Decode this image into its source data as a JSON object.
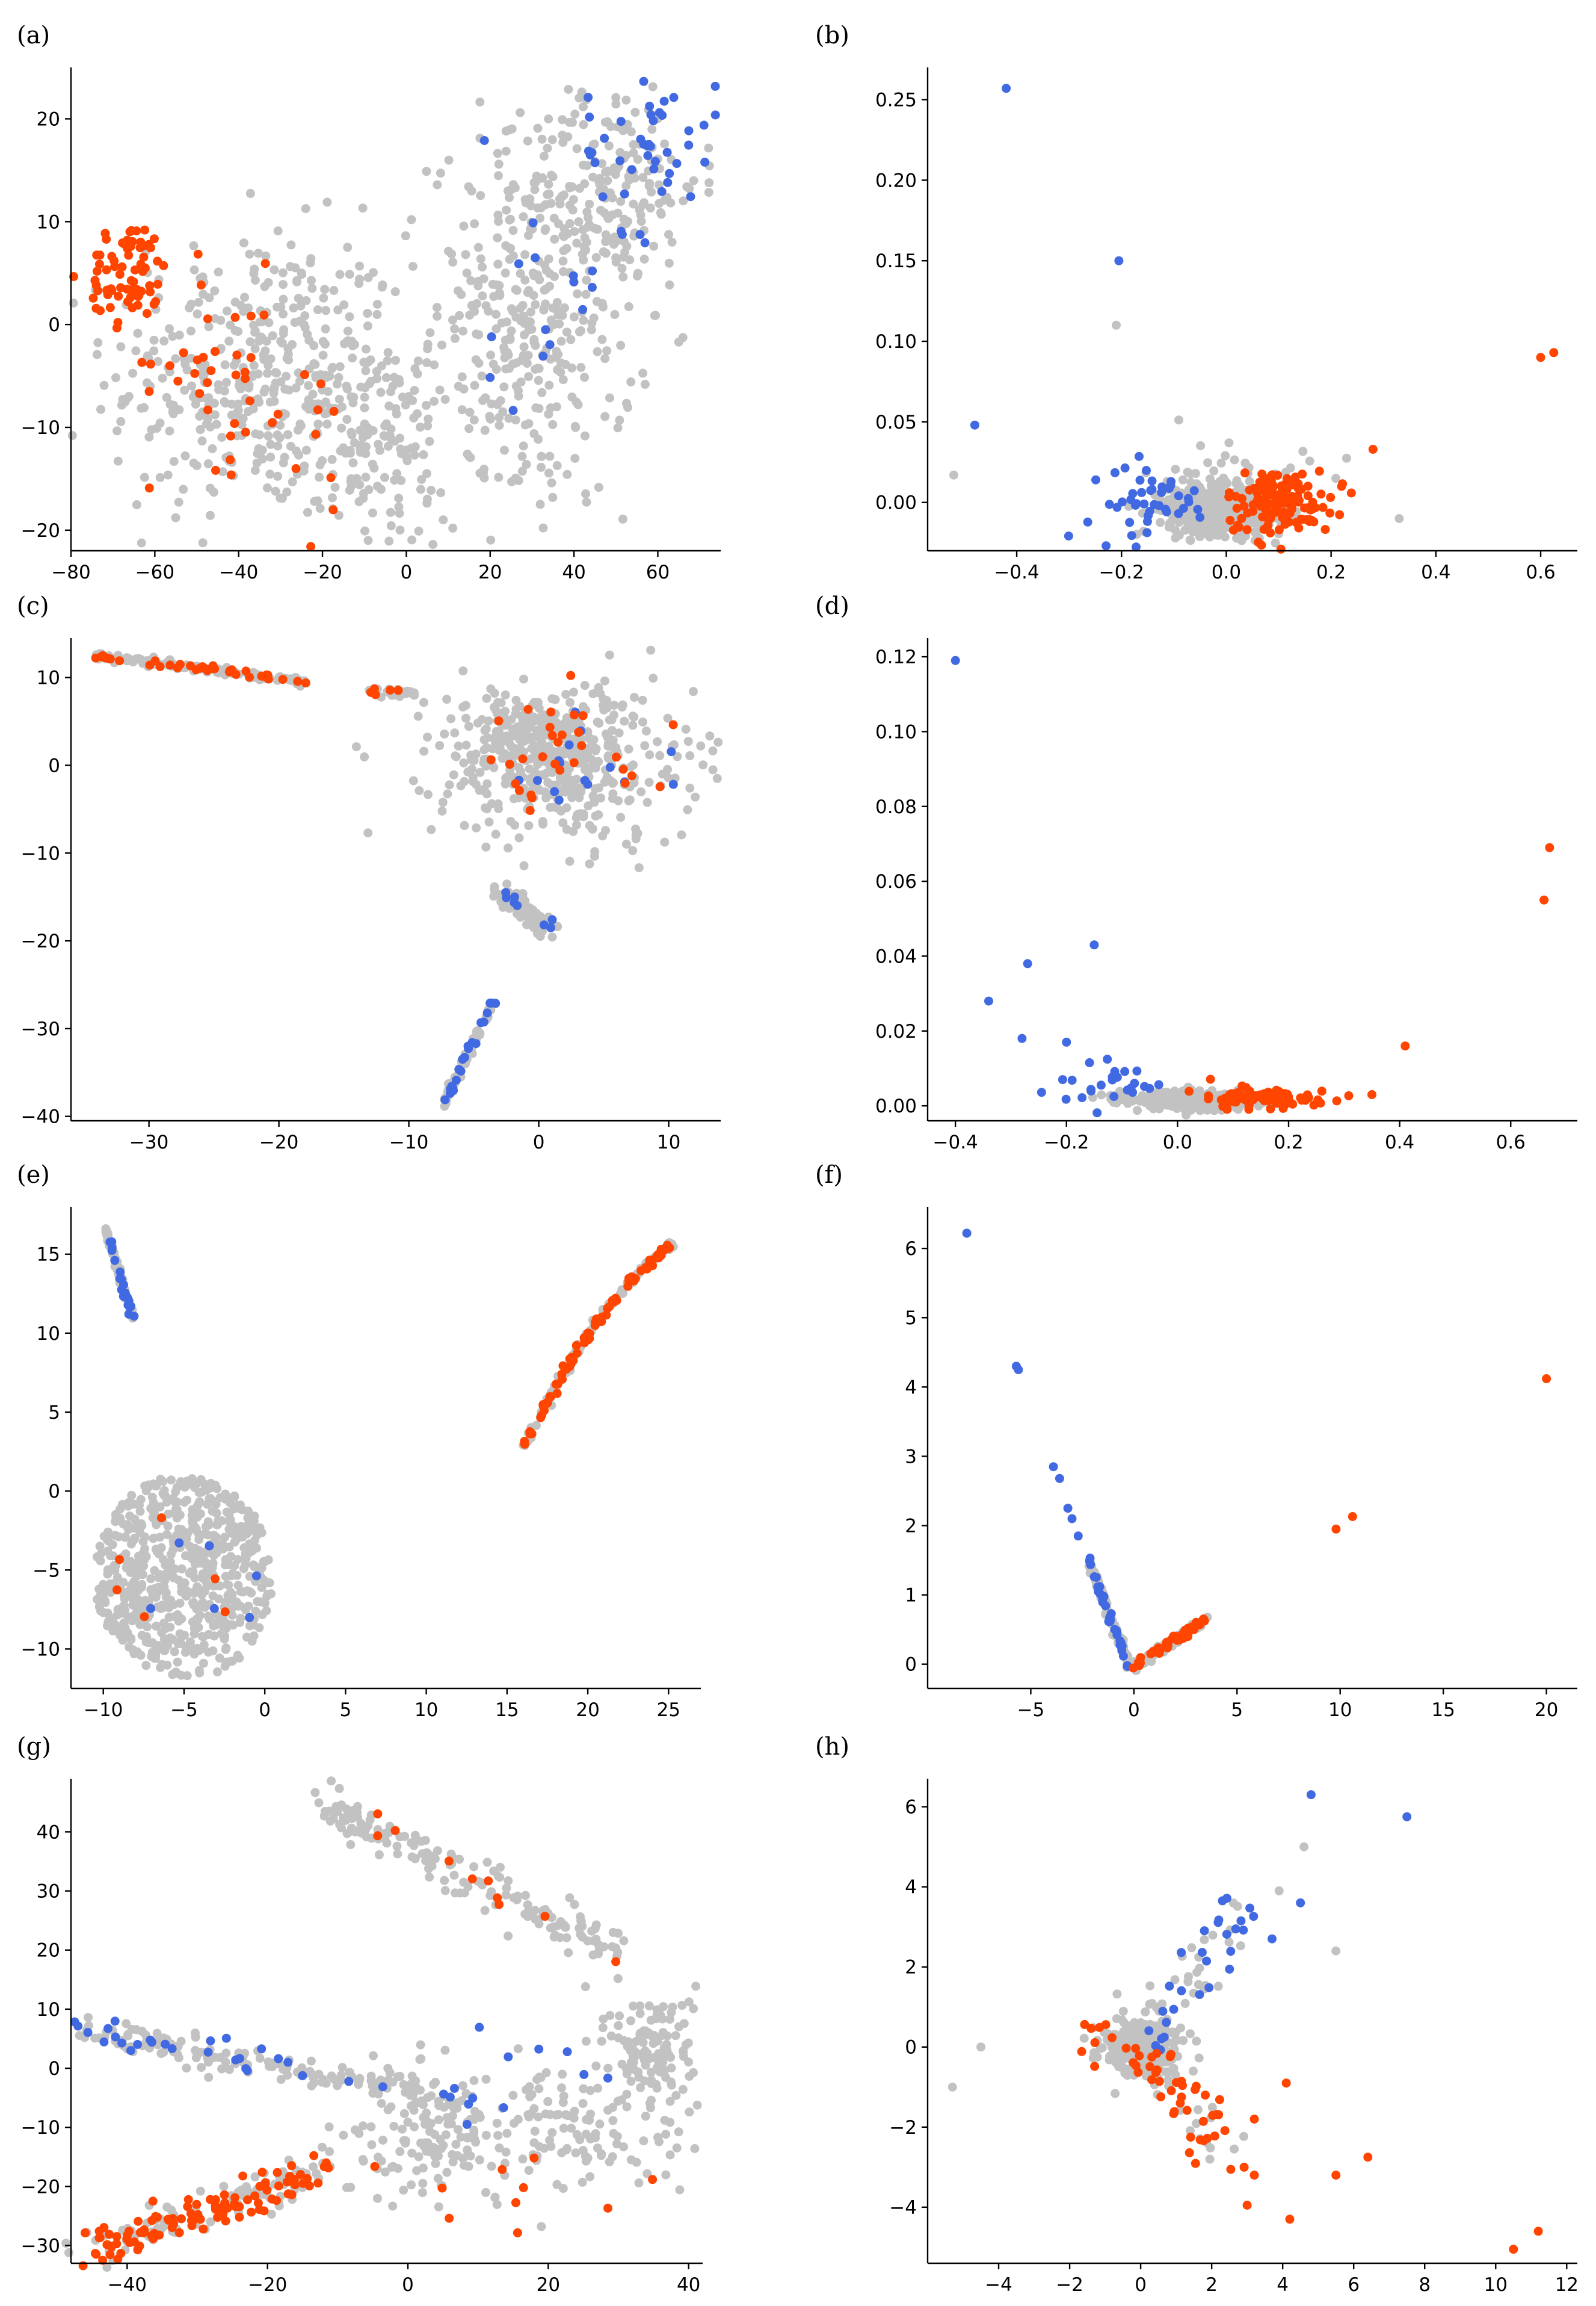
{
  "figure": {
    "colors": {
      "gray": "#c2c2c2",
      "blue": "#4169e1",
      "orange": "#ff4500"
    }
  },
  "chart_data": [
    {
      "label": "(a)",
      "type": "scatter",
      "xlim": [
        -80,
        75
      ],
      "ylim": [
        -22,
        25
      ],
      "xticks": [
        -80,
        -60,
        -40,
        -20,
        0,
        20,
        40,
        60
      ],
      "yticks": [
        -20,
        -10,
        0,
        10,
        20
      ],
      "clusters": [
        {
          "color": "gray",
          "n": 420,
          "cx": -35,
          "cy": -5,
          "sx": 18,
          "sy": 7,
          "shape": "gauss"
        },
        {
          "color": "gray",
          "n": 380,
          "cx": 30,
          "cy": 0,
          "sx": 12,
          "sy": 9,
          "shape": "gauss"
        },
        {
          "color": "gray",
          "n": 160,
          "cx": 50,
          "cy": 14,
          "sx": 10,
          "sy": 5,
          "shape": "gauss"
        },
        {
          "color": "gray",
          "n": 120,
          "cx": -8,
          "cy": -12,
          "sx": 10,
          "sy": 5,
          "shape": "gauss"
        },
        {
          "color": "orange",
          "n": 75,
          "cx": -66,
          "cy": 5,
          "sx": 5,
          "sy": 2.5,
          "shape": "gauss"
        },
        {
          "color": "orange",
          "n": 35,
          "cx": -45,
          "cy": -4,
          "sx": 8,
          "sy": 5,
          "shape": "gauss"
        },
        {
          "color": "orange",
          "n": 10,
          "cx": -25,
          "cy": -10,
          "sx": 8,
          "sy": 5,
          "shape": "gauss"
        },
        {
          "color": "blue",
          "n": 45,
          "cx": 58,
          "cy": 17,
          "sx": 8,
          "sy": 4,
          "shape": "gauss"
        },
        {
          "color": "blue",
          "n": 15,
          "cx": 35,
          "cy": 5,
          "sx": 8,
          "sy": 8,
          "shape": "gauss"
        }
      ]
    },
    {
      "label": "(b)",
      "type": "scatter",
      "xlim": [
        -0.57,
        0.67
      ],
      "ylim": [
        -0.03,
        0.27
      ],
      "xticks": [
        -0.4,
        -0.2,
        0.0,
        0.2,
        0.4,
        0.6
      ],
      "yticks": [
        0.0,
        0.05,
        0.1,
        0.15,
        0.2,
        0.25
      ],
      "clusters": [
        {
          "color": "gray",
          "n": 650,
          "cx": -0.01,
          "cy": -0.005,
          "sx": 0.05,
          "sy": 0.007,
          "shape": "gauss"
        },
        {
          "color": "gray",
          "n": 60,
          "cx": 0.0,
          "cy": 0.01,
          "sx": 0.08,
          "sy": 0.015,
          "shape": "gauss"
        },
        {
          "color": "orange",
          "n": 130,
          "cx": 0.1,
          "cy": 0.0,
          "sx": 0.05,
          "sy": 0.01,
          "shape": "gauss"
        },
        {
          "color": "blue",
          "n": 45,
          "cx": -0.14,
          "cy": 0.0,
          "sx": 0.06,
          "sy": 0.012,
          "shape": "gauss"
        }
      ],
      "points": [
        {
          "x": -0.42,
          "y": 0.257,
          "color": "blue"
        },
        {
          "x": -0.205,
          "y": 0.15,
          "color": "blue"
        },
        {
          "x": -0.48,
          "y": 0.048,
          "color": "blue"
        },
        {
          "x": -0.21,
          "y": 0.11,
          "color": "gray"
        },
        {
          "x": -0.52,
          "y": 0.017,
          "color": "gray"
        },
        {
          "x": 0.33,
          "y": -0.01,
          "color": "gray"
        },
        {
          "x": 0.6,
          "y": 0.09,
          "color": "orange"
        },
        {
          "x": 0.625,
          "y": 0.093,
          "color": "orange"
        },
        {
          "x": 0.28,
          "y": 0.033,
          "color": "orange"
        },
        {
          "x": 0.22,
          "y": 0.01,
          "color": "orange"
        }
      ]
    },
    {
      "label": "(c)",
      "type": "scatter",
      "xlim": [
        -36,
        14
      ],
      "ylim": [
        -40.5,
        14.5
      ],
      "xticks": [
        -30,
        -20,
        -10,
        0,
        10
      ],
      "yticks": [
        -40,
        -30,
        -20,
        -10,
        0,
        10
      ],
      "clusters": [
        {
          "color": "gray",
          "n": 400,
          "cx": 2,
          "cy": 0,
          "sx": 5,
          "sy": 4.5,
          "shape": "gauss"
        },
        {
          "color": "gray",
          "n": 120,
          "cx": -1,
          "cy": 4,
          "sx": 3,
          "sy": 2,
          "shape": "gauss"
        },
        {
          "color": "orange",
          "n": 30,
          "cx": 1,
          "cy": 0,
          "sx": 5,
          "sy": 4,
          "shape": "gauss"
        },
        {
          "color": "blue",
          "n": 15,
          "cx": 3,
          "cy": 0,
          "sx": 3,
          "sy": 3,
          "shape": "gauss"
        }
      ],
      "lines": [
        {
          "color": "gray",
          "n": 180,
          "x0": -34,
          "y0": 12.5,
          "x1": -18,
          "y1": 9.5,
          "j": 0.2,
          "mix": "orange",
          "mixn": 40
        },
        {
          "color": "gray",
          "n": 40,
          "x0": -13,
          "y0": 8.5,
          "x1": -9.5,
          "y1": 8.2,
          "j": 0.2,
          "mix": "orange",
          "mixn": 6
        },
        {
          "color": "gray",
          "n": 80,
          "x0": -7.5,
          "y0": -39,
          "x1": -3.5,
          "y1": -27,
          "j": 0.15,
          "mix": "blue",
          "mixn": 25
        },
        {
          "color": "gray",
          "n": 70,
          "x0": -3,
          "y0": -14,
          "x1": 1,
          "y1": -19,
          "j": 0.5,
          "mix": "blue",
          "mixn": 8
        }
      ]
    },
    {
      "label": "(d)",
      "type": "scatter",
      "xlim": [
        -0.45,
        0.72
      ],
      "ylim": [
        -0.004,
        0.125
      ],
      "xticks": [
        -0.4,
        -0.2,
        0.0,
        0.2,
        0.4,
        0.6
      ],
      "yticks": [
        0.0,
        0.02,
        0.04,
        0.06,
        0.08,
        0.1,
        0.12
      ],
      "clusters": [
        {
          "color": "gray",
          "n": 320,
          "cx": 0.03,
          "cy": 0.0015,
          "sx": 0.06,
          "sy": 0.0012,
          "shape": "gauss"
        },
        {
          "color": "orange",
          "n": 80,
          "cx": 0.15,
          "cy": 0.002,
          "sx": 0.06,
          "sy": 0.0015,
          "shape": "gauss"
        },
        {
          "color": "blue",
          "n": 25,
          "cx": -0.13,
          "cy": 0.005,
          "sx": 0.06,
          "sy": 0.003,
          "shape": "gauss"
        }
      ],
      "points": [
        {
          "x": -0.4,
          "y": 0.119,
          "color": "blue"
        },
        {
          "x": -0.15,
          "y": 0.043,
          "color": "blue"
        },
        {
          "x": -0.27,
          "y": 0.038,
          "color": "blue"
        },
        {
          "x": -0.34,
          "y": 0.028,
          "color": "blue"
        },
        {
          "x": -0.28,
          "y": 0.018,
          "color": "blue"
        },
        {
          "x": -0.2,
          "y": 0.017,
          "color": "blue"
        },
        {
          "x": 0.67,
          "y": 0.069,
          "color": "orange"
        },
        {
          "x": 0.66,
          "y": 0.055,
          "color": "orange"
        },
        {
          "x": 0.41,
          "y": 0.016,
          "color": "orange"
        },
        {
          "x": 0.35,
          "y": 0.003,
          "color": "orange"
        }
      ]
    },
    {
      "label": "(e)",
      "type": "scatter",
      "xlim": [
        -12,
        27
      ],
      "ylim": [
        -12.5,
        18
      ],
      "xticks": [
        -10,
        -5,
        0,
        5,
        10,
        15,
        20,
        25
      ],
      "yticks": [
        -10,
        -5,
        0,
        5,
        10,
        15
      ],
      "clusters": [
        {
          "color": "gray",
          "n": 650,
          "cx": -5,
          "cy": -5.5,
          "sx": 5.5,
          "sy": 6.5,
          "shape": "disk"
        },
        {
          "color": "orange",
          "n": 6,
          "cx": -5,
          "cy": -5.5,
          "sx": 5,
          "sy": 5,
          "shape": "disk"
        },
        {
          "color": "blue",
          "n": 6,
          "cx": -5,
          "cy": -5.5,
          "sx": 5,
          "sy": 5,
          "shape": "disk"
        }
      ],
      "lines": [
        {
          "color": "gray",
          "n": 80,
          "x0": -9.8,
          "y0": 16.5,
          "x1": -8.2,
          "y1": 11,
          "j": 0.08,
          "mix": "blue",
          "mixn": 25
        },
        {
          "color": "gray",
          "n": 200,
          "x0": 16,
          "y0": 2.8,
          "x1": 25.3,
          "y1": 15.8,
          "j": 0.1,
          "mix": "orange",
          "mixn": 90,
          "curve": 1.5
        }
      ]
    },
    {
      "label": "(f)",
      "type": "scatter",
      "xlim": [
        -10,
        21.5
      ],
      "ylim": [
        -0.35,
        6.6
      ],
      "xticks": [
        -5,
        0,
        5,
        10,
        15,
        20
      ],
      "yticks": [
        0,
        1,
        2,
        3,
        4,
        5,
        6
      ],
      "lines": [
        {
          "color": "gray",
          "n": 150,
          "x0": -2.2,
          "y0": 1.5,
          "x1": -0.2,
          "y1": -0.05,
          "j": 0.04,
          "mix": "blue",
          "mixn": 40
        },
        {
          "color": "gray",
          "n": 120,
          "x0": -0.1,
          "y0": -0.05,
          "x1": 3.5,
          "y1": 0.65,
          "j": 0.03,
          "mix": "orange",
          "mixn": 70
        }
      ],
      "points": [
        {
          "x": -8.1,
          "y": 6.22,
          "color": "blue"
        },
        {
          "x": -5.7,
          "y": 4.3,
          "color": "blue"
        },
        {
          "x": -5.6,
          "y": 4.25,
          "color": "blue"
        },
        {
          "x": -3.9,
          "y": 2.85,
          "color": "blue"
        },
        {
          "x": -3.6,
          "y": 2.68,
          "color": "blue"
        },
        {
          "x": -3.2,
          "y": 2.25,
          "color": "blue"
        },
        {
          "x": -3.0,
          "y": 2.1,
          "color": "blue"
        },
        {
          "x": -2.7,
          "y": 1.85,
          "color": "blue"
        },
        {
          "x": 20.0,
          "y": 4.12,
          "color": "orange"
        },
        {
          "x": 10.6,
          "y": 2.13,
          "color": "orange"
        },
        {
          "x": 9.8,
          "y": 1.95,
          "color": "orange"
        }
      ]
    },
    {
      "label": "(g)",
      "type": "scatter",
      "xlim": [
        -48,
        42
      ],
      "ylim": [
        -33,
        49
      ],
      "xticks": [
        -40,
        -20,
        0,
        20,
        40
      ],
      "yticks": [
        -30,
        -20,
        -10,
        0,
        10,
        20,
        30,
        40
      ],
      "clusters": [
        {
          "color": "gray",
          "n": 160,
          "cx": 20,
          "cy": -10,
          "sx": 10,
          "sy": 6,
          "shape": "gauss"
        },
        {
          "color": "gray",
          "n": 120,
          "cx": 35,
          "cy": 3,
          "sx": 3,
          "sy": 5,
          "shape": "gauss"
        },
        {
          "color": "gray",
          "n": 90,
          "cx": 2,
          "cy": -12,
          "sx": 5,
          "sy": 6,
          "shape": "gauss"
        },
        {
          "color": "blue",
          "n": 8,
          "cx": 20,
          "cy": 0,
          "sx": 8,
          "sy": 5,
          "shape": "gauss"
        },
        {
          "color": "orange",
          "n": 10,
          "cx": 15,
          "cy": -20,
          "sx": 8,
          "sy": 4,
          "shape": "gauss"
        }
      ],
      "lines": [
        {
          "color": "gray",
          "n": 180,
          "x0": -12,
          "y0": 45,
          "x1": 30,
          "y1": 19,
          "j": 1.6,
          "mix": "orange",
          "mixn": 10
        },
        {
          "color": "gray",
          "n": 200,
          "x0": -46,
          "y0": 6.5,
          "x1": 10,
          "y1": -6,
          "j": 1.2,
          "mix": "blue",
          "mixn": 35
        },
        {
          "color": "gray",
          "n": 200,
          "x0": -46,
          "y0": -31,
          "x1": -11,
          "y1": -17,
          "j": 1.6,
          "mix": "orange",
          "mixn": 130
        }
      ]
    },
    {
      "label": "(h)",
      "type": "scatter",
      "xlim": [
        -6,
        12.3
      ],
      "ylim": [
        -5.4,
        6.7
      ],
      "xticks": [
        -4,
        -2,
        0,
        2,
        4,
        6,
        8,
        10,
        12
      ],
      "yticks": [
        -4,
        -2,
        0,
        2,
        4,
        6
      ],
      "clusters": [
        {
          "color": "gray",
          "n": 300,
          "cx": 0.1,
          "cy": 0.0,
          "sx": 0.55,
          "sy": 0.35,
          "shape": "gauss"
        },
        {
          "color": "orange",
          "n": 10,
          "cx": -1.2,
          "cy": 0.2,
          "sx": 0.6,
          "sy": 0.3,
          "shape": "gauss"
        }
      ],
      "lines": [
        {
          "color": "gray",
          "n": 60,
          "x0": 0,
          "y0": 0,
          "x1": 3,
          "y1": 3.5,
          "j": 0.3,
          "mix": "blue",
          "mixn": 40
        },
        {
          "color": "gray",
          "n": 60,
          "x0": 0,
          "y0": 0,
          "x1": 2.6,
          "y1": -2.8,
          "j": 0.35,
          "mix": "orange",
          "mixn": 60
        }
      ],
      "points": [
        {
          "x": 4.8,
          "y": 6.3,
          "color": "blue"
        },
        {
          "x": 7.5,
          "y": 5.75,
          "color": "blue"
        },
        {
          "x": 4.5,
          "y": 3.6,
          "color": "blue"
        },
        {
          "x": 3.7,
          "y": 2.7,
          "color": "blue"
        },
        {
          "x": 4.6,
          "y": 5.0,
          "color": "gray"
        },
        {
          "x": 5.5,
          "y": 2.4,
          "color": "gray"
        },
        {
          "x": 3.9,
          "y": 3.9,
          "color": "gray"
        },
        {
          "x": -5.3,
          "y": -1.0,
          "color": "gray"
        },
        {
          "x": -4.5,
          "y": 0.0,
          "color": "gray"
        },
        {
          "x": 10.5,
          "y": -5.05,
          "color": "orange"
        },
        {
          "x": 11.2,
          "y": -4.6,
          "color": "orange"
        },
        {
          "x": 5.5,
          "y": -3.2,
          "color": "orange"
        },
        {
          "x": 6.4,
          "y": -2.75,
          "color": "orange"
        },
        {
          "x": 4.2,
          "y": -4.3,
          "color": "orange"
        },
        {
          "x": 3.0,
          "y": -3.95,
          "color": "orange"
        },
        {
          "x": 3.2,
          "y": -3.2,
          "color": "orange"
        },
        {
          "x": 4.1,
          "y": -0.9,
          "color": "orange"
        },
        {
          "x": 3.2,
          "y": -1.8,
          "color": "orange"
        }
      ]
    }
  ]
}
